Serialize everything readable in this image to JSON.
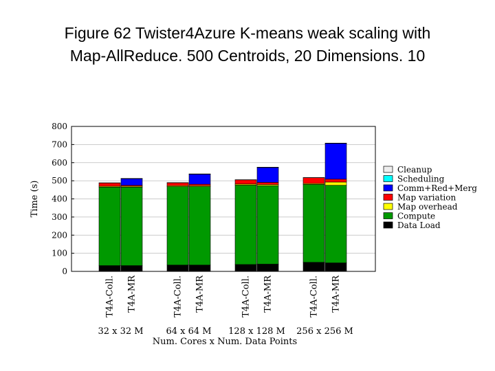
{
  "title": {
    "line1": "Figure 62 Twister4Azure K-means weak scaling with",
    "line2": "Map-AllReduce. 500 Centroids, 20 Dimensions. 10"
  },
  "chart_data": {
    "type": "bar",
    "stacked": true,
    "ylabel": "Time (s)",
    "xlabel": "Num. Cores x Num. Data Points",
    "ylim": [
      0,
      800
    ],
    "yticks": [
      0,
      100,
      200,
      300,
      400,
      500,
      600,
      700,
      800
    ],
    "grid": true,
    "legend_position": "right",
    "bars": [
      "T4A-Coll.",
      "T4A-MR",
      "T4A-Coll.",
      "T4A-MR",
      "T4A-Coll.",
      "T4A-MR",
      "T4A-Coll.",
      "T4A-MR"
    ],
    "groups": [
      "32 x 32 M",
      "64 x 64 M",
      "128 x 128 M",
      "256 x 256 M"
    ],
    "series": [
      {
        "name": "Data Load",
        "color": "#000000",
        "values": [
          32,
          32,
          35,
          35,
          38,
          40,
          50,
          47
        ]
      },
      {
        "name": "Compute",
        "color": "#009900",
        "values": [
          433,
          433,
          433,
          433,
          438,
          433,
          430,
          428
        ]
      },
      {
        "name": "Map overhead",
        "color": "#ffff00",
        "values": [
          5,
          5,
          5,
          5,
          6,
          6,
          5,
          18
        ]
      },
      {
        "name": "Map variation",
        "color": "#ff0000",
        "values": [
          18,
          5,
          16,
          8,
          23,
          12,
          32,
          16
        ]
      },
      {
        "name": "Comm+Red+Merge",
        "color": "#0000ff",
        "values": [
          0,
          36,
          0,
          55,
          0,
          82,
          0,
          197
        ]
      },
      {
        "name": "Scheduling",
        "color": "#00ffff",
        "values": [
          0,
          1,
          0,
          1,
          0,
          1,
          0,
          1
        ]
      },
      {
        "name": "Cleanup",
        "color": "#eeeeee",
        "values": [
          1,
          1,
          1,
          1,
          1,
          1,
          1,
          1
        ]
      }
    ],
    "legend": [
      "Cleanup",
      "Scheduling",
      "Comm+Red+Merg",
      "Map variation",
      "Map overhead",
      "Compute",
      "Data Load"
    ]
  }
}
